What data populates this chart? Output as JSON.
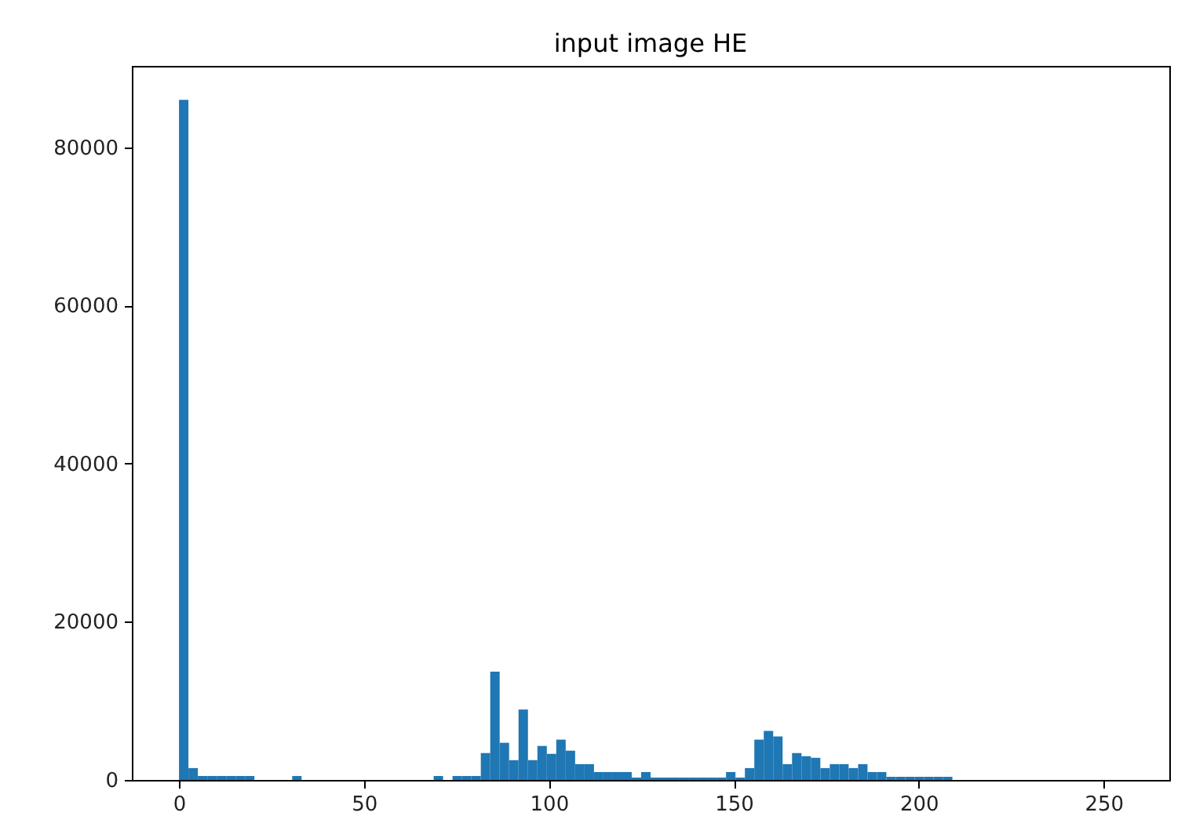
{
  "chart_data": {
    "type": "histogram",
    "title": "input image HE",
    "color": "#1f77b4",
    "bins": [
      0,
      2.55,
      5.1,
      7.65,
      10.2,
      12.75,
      15.3,
      17.85,
      20.4,
      22.95,
      25.5,
      28.05,
      30.6,
      33.15,
      35.7,
      38.25,
      40.8,
      43.35,
      45.9,
      48.45,
      51,
      53.55,
      56.1,
      58.65,
      61.2,
      63.75,
      66.3,
      68.85,
      71.4,
      73.95,
      76.5,
      79.05,
      81.6,
      84.15,
      86.7,
      89.25,
      91.8,
      94.35,
      96.9,
      99.45,
      102,
      104.55,
      107.1,
      109.65,
      112.2,
      114.75,
      117.3,
      119.85,
      122.4,
      124.95,
      127.5,
      130.05,
      132.6,
      135.15,
      137.7,
      140.25,
      142.8,
      145.35,
      147.9,
      150.45,
      153,
      155.55,
      158.1,
      160.65,
      163.2,
      165.75,
      168.3,
      170.85,
      173.4,
      175.95,
      178.5,
      181.05,
      183.6,
      186.15,
      188.7,
      191.25,
      193.8,
      196.35,
      198.9,
      201.45,
      204,
      206.55,
      209.1,
      211.65,
      214.2,
      216.75,
      219.3,
      221.85,
      224.4,
      226.95,
      229.5,
      232.05,
      234.6,
      237.15,
      239.7,
      242.25,
      244.8,
      247.35,
      249.9,
      252.45,
      255
    ],
    "values": [
      86000,
      1500,
      500,
      500,
      500,
      500,
      500,
      500,
      0,
      0,
      0,
      0,
      500,
      0,
      0,
      0,
      0,
      0,
      0,
      0,
      0,
      0,
      0,
      0,
      0,
      0,
      0,
      500,
      0,
      500,
      500,
      500,
      3400,
      13700,
      4700,
      2500,
      8900,
      2500,
      4300,
      3300,
      5100,
      3700,
      2000,
      2000,
      1000,
      1000,
      1000,
      1000,
      300,
      1000,
      300,
      300,
      300,
      300,
      300,
      300,
      300,
      300,
      1000,
      300,
      1500,
      5100,
      6200,
      5500,
      2000,
      3400,
      3000,
      2800,
      1500,
      2000,
      2000,
      1500,
      2000,
      1000,
      1000,
      400,
      400,
      400,
      400,
      400,
      400,
      400,
      0,
      0,
      0,
      0,
      0,
      0,
      0,
      0,
      0,
      0,
      0,
      0,
      0,
      0,
      0,
      0,
      0,
      0
    ],
    "xlim": [
      -12.75,
      267.75
    ],
    "xticks": [
      0,
      50,
      100,
      150,
      200,
      250
    ],
    "ylim": [
      0,
      90300
    ],
    "yticks": [
      0,
      20000,
      40000,
      60000,
      80000
    ]
  }
}
